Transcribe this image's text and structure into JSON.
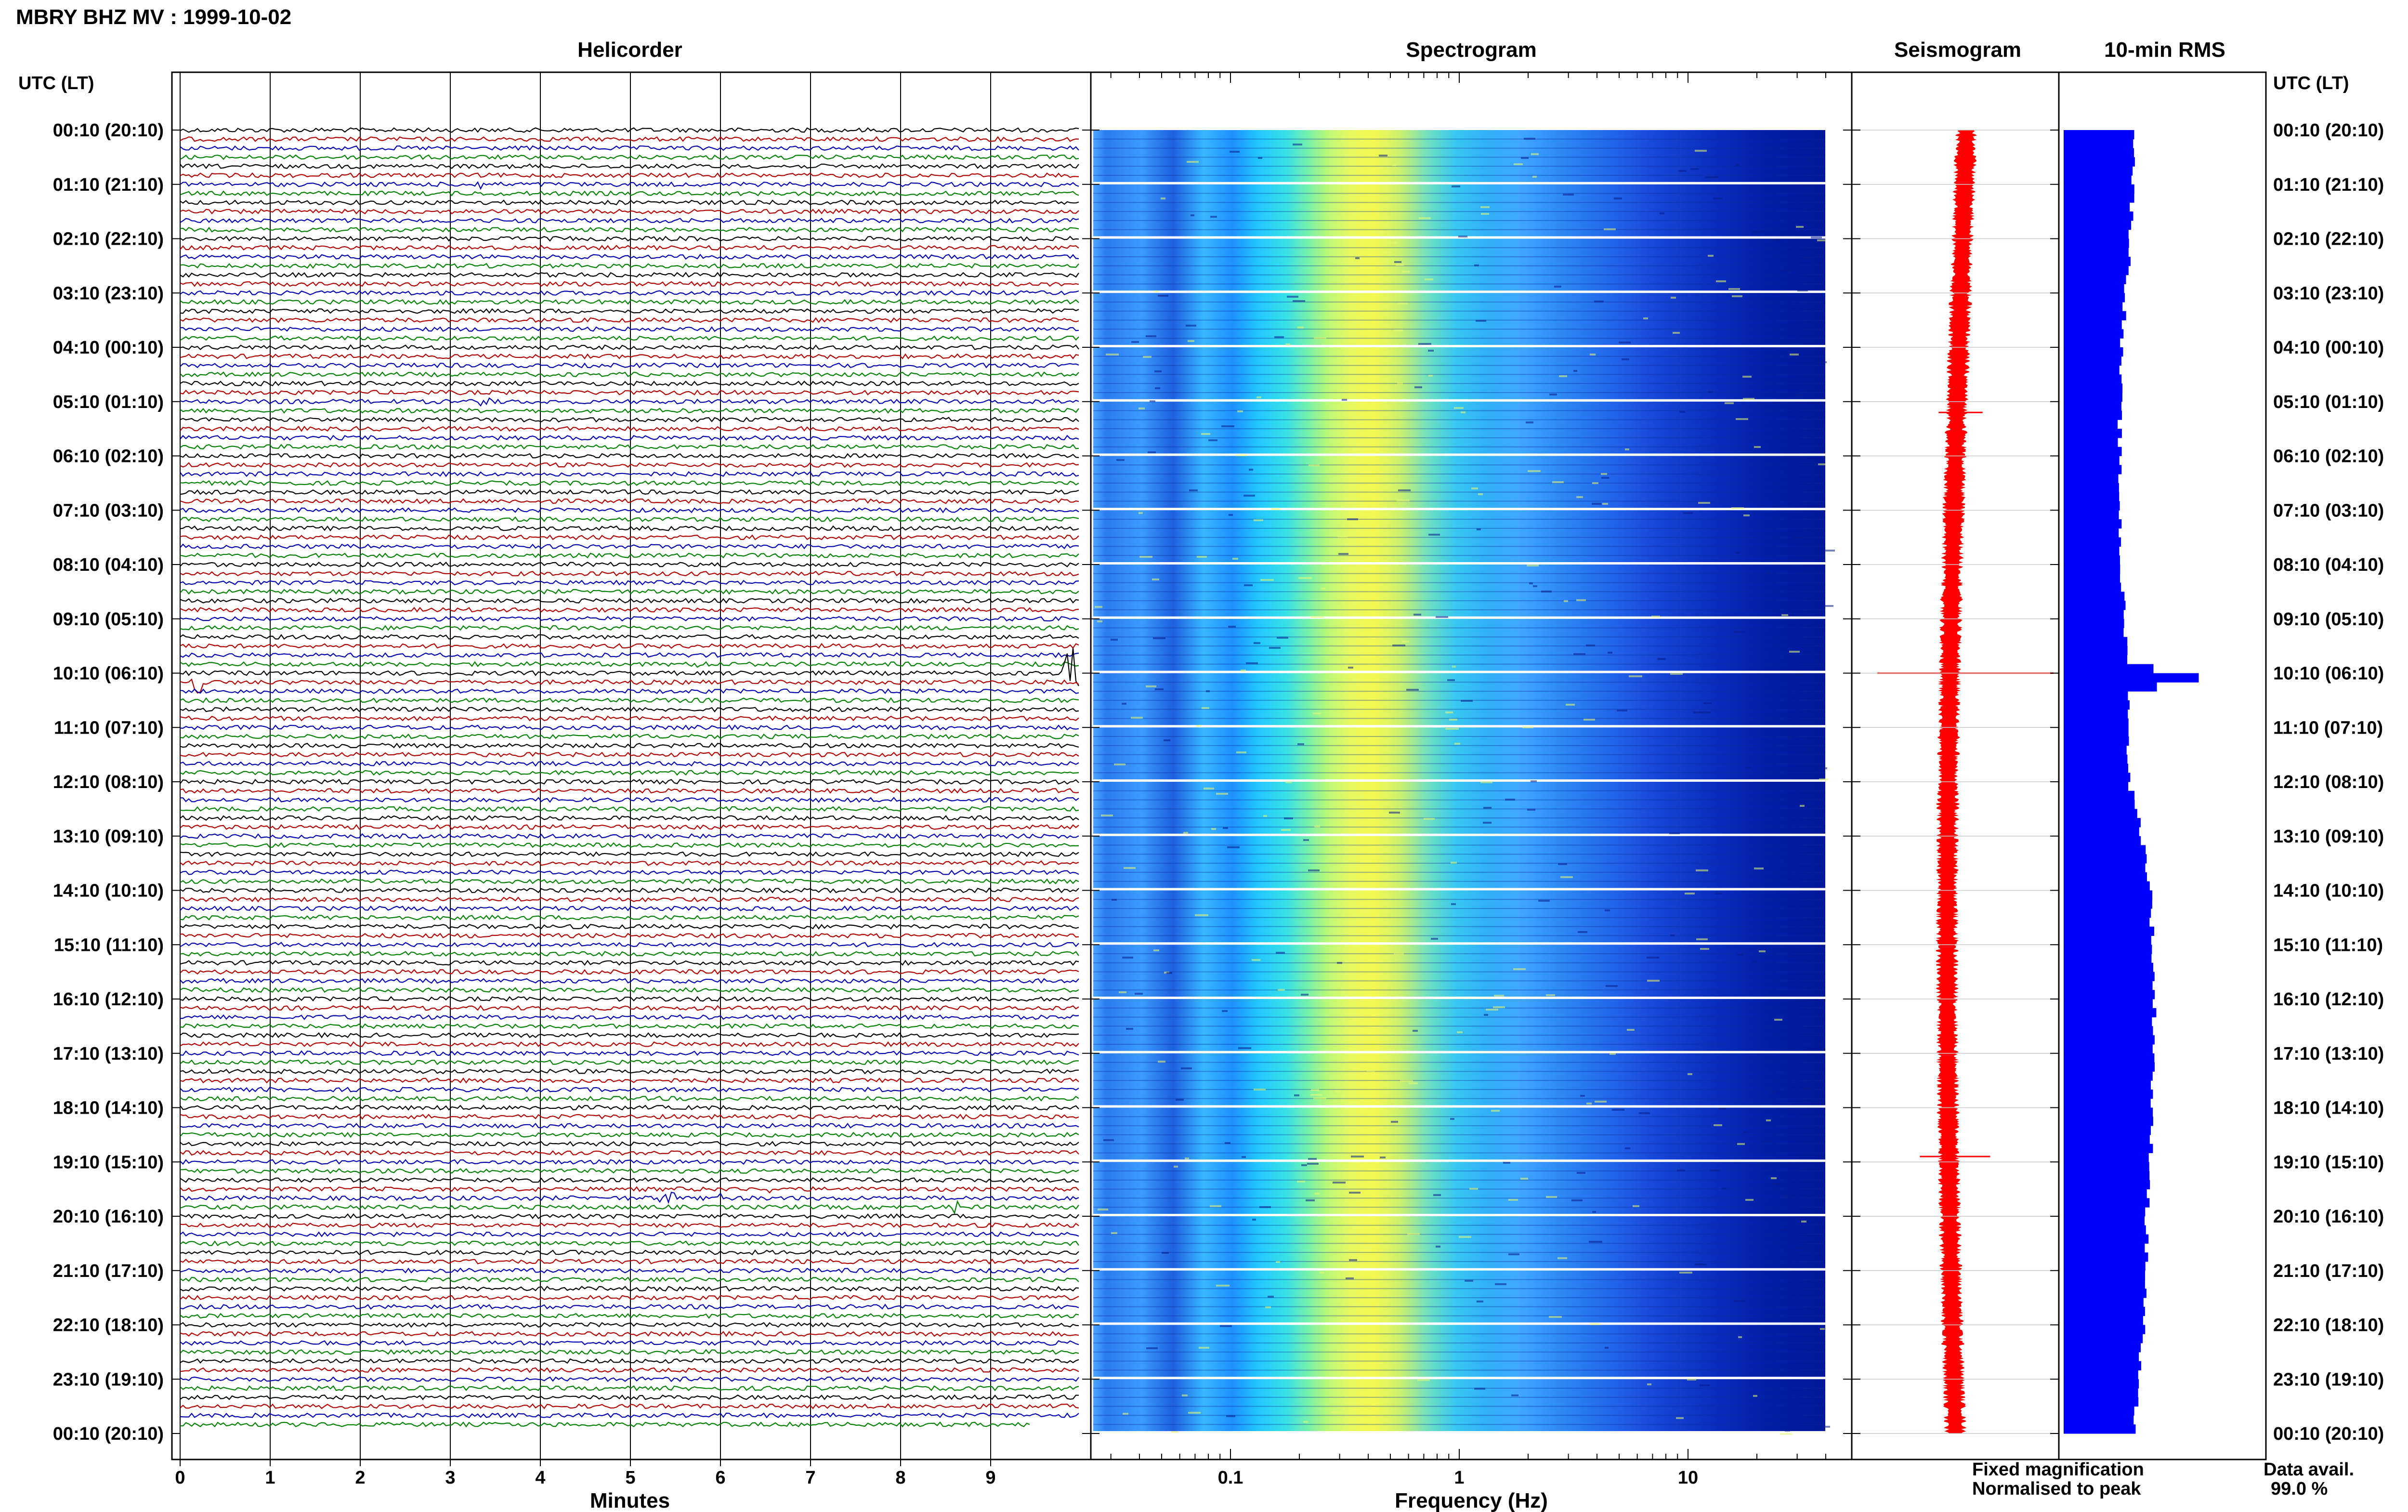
{
  "title": "MBRY BHZ MV : 1999-10-02",
  "panels": {
    "helicorder": "Helicorder",
    "spectrogram": "Spectrogram",
    "seismogram": "Seismogram",
    "rms": "10-min RMS"
  },
  "axis_header_left": "UTC (LT)",
  "axis_header_right": "UTC (LT)",
  "xlabel_minutes": "Minutes",
  "xlabel_frequency": "Frequency (Hz)",
  "minute_ticks": [
    "0",
    "1",
    "2",
    "3",
    "4",
    "5",
    "6",
    "7",
    "8",
    "9"
  ],
  "frequency_ticks": [
    "0.1",
    "1",
    "10"
  ],
  "time_labels": [
    "00:10 (20:10)",
    "01:10 (21:10)",
    "02:10 (22:10)",
    "03:10 (23:10)",
    "04:10 (00:10)",
    "05:10 (01:10)",
    "06:10 (02:10)",
    "07:10 (03:10)",
    "08:10 (04:10)",
    "09:10 (05:10)",
    "10:10 (06:10)",
    "11:10 (07:10)",
    "12:10 (08:10)",
    "13:10 (09:10)",
    "14:10 (10:10)",
    "15:10 (11:10)",
    "16:10 (12:10)",
    "17:10 (13:10)",
    "18:10 (14:10)",
    "19:10 (15:10)",
    "20:10 (16:10)",
    "21:10 (17:10)",
    "22:10 (18:10)",
    "23:10 (19:10)",
    "00:10 (20:10)"
  ],
  "legend": {
    "fixed": "Fixed magnification",
    "normalised": "Normalised to peak",
    "fixed_color": "#0000ff",
    "normalised_color": "#ff0000"
  },
  "data_avail_label": "Data avail.",
  "data_avail_value": "99.0 %",
  "colors": {
    "trace_cycle": [
      "#000000",
      "#b00000",
      "#0000b0",
      "#008000"
    ],
    "rms_bar": "#0000ff",
    "seismogram": "#ff0000"
  },
  "chart_data": {
    "type": "helicorder",
    "rows": 144,
    "minutes_per_row": 10,
    "hour_range": [
      0,
      24
    ],
    "frequency_range_hz": [
      0.02,
      40
    ],
    "frequency_scale": "log",
    "events": [
      {
        "row": 6,
        "minute": 3.3,
        "strength": 0.6
      },
      {
        "row": 30,
        "minute": 3.4,
        "strength": 0.7
      },
      {
        "row": 59,
        "minute": 5.8,
        "strength": 0.8
      },
      {
        "row": 60,
        "minute": 9.9,
        "strength": 3.5
      },
      {
        "row": 61,
        "minute": 0.2,
        "strength": 1.2
      },
      {
        "row": 118,
        "minute": 5.4,
        "strength": 1.6
      },
      {
        "row": 118,
        "minute": 6.0,
        "strength": 1.0
      },
      {
        "row": 119,
        "minute": 8.6,
        "strength": 1.0
      },
      {
        "row": 117,
        "minute": 6.5,
        "strength": 0.6
      }
    ],
    "rms_profile_hours": [
      0,
      2,
      4,
      6,
      8,
      9.7,
      10,
      10.3,
      11,
      12,
      13,
      14,
      15,
      16,
      17,
      18,
      19,
      20,
      21,
      22,
      23,
      24
    ],
    "rms_profile_values": [
      0.45,
      0.42,
      0.36,
      0.35,
      0.36,
      0.4,
      0.8,
      0.42,
      0.4,
      0.42,
      0.5,
      0.55,
      0.56,
      0.57,
      0.57,
      0.55,
      0.55,
      0.52,
      0.52,
      0.5,
      0.46,
      0.45
    ],
    "seismogram_spikes": [
      {
        "hour": 5.2,
        "width": 0.25
      },
      {
        "hour": 10.0,
        "width": 1.0
      },
      {
        "hour": 18.9,
        "width": 0.4
      }
    ]
  }
}
